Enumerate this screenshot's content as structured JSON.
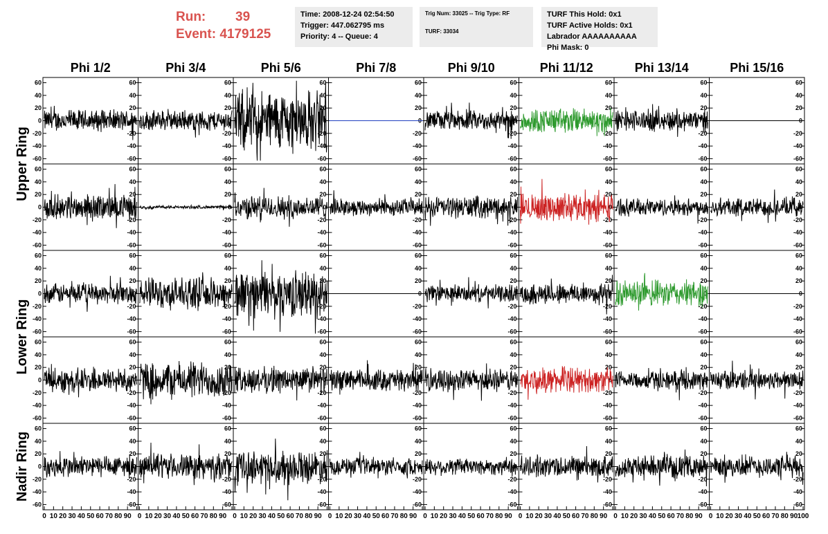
{
  "header": {
    "run_label": "Run:",
    "run_value": "39",
    "event_label": "Event:",
    "event_value": "4179125"
  },
  "info_box_1": {
    "time": "Time: 2008-12-24 02:54:50",
    "trigger": "Trigger: 447.062795 ms",
    "priority": "Priority: 4 -- Queue: 4"
  },
  "info_box_2": {
    "trig": "Trig Num: 33025 -- Trig Type: RF",
    "turf": "TURF: 33034"
  },
  "info_box_3": {
    "hold": "TURF This Hold: 0x1",
    "active": "TURF Active Holds: 0x1",
    "labrador": "Labrador AAAAAAAAAA",
    "phimask": "Phi Mask: 0"
  },
  "chart_data": {
    "type": "line",
    "title": "",
    "column_labels": [
      "Phi 1/2",
      "Phi 3/4",
      "Phi 5/6",
      "Phi 7/8",
      "Phi 9/10",
      "Phi 11/12",
      "Phi 13/14",
      "Phi 15/16"
    ],
    "ring_labels": [
      "Upper Ring",
      "Lower Ring",
      "Nadir Ring"
    ],
    "ylim": [
      -65,
      65
    ],
    "yticks": [
      -60,
      -40,
      -20,
      0,
      20,
      40,
      60
    ],
    "xlim": [
      0,
      100
    ],
    "xticks": [
      0,
      10,
      20,
      30,
      40,
      50,
      60,
      70,
      80,
      90,
      100
    ],
    "colors": {
      "black": "#000000",
      "green": "#2e9a2e",
      "red": "#cc2222",
      "blue": "#1f3fbf"
    },
    "rows": [
      {
        "ring": "Upper Ring",
        "cells": [
          {
            "amp": 14,
            "color": "black"
          },
          {
            "amp": 13,
            "color": "black"
          },
          {
            "amp": 40,
            "color": "black"
          },
          {
            "amp": 0,
            "color": "blue"
          },
          {
            "amp": 13,
            "color": "black"
          },
          {
            "amp": 16,
            "color": "green"
          },
          {
            "amp": 14,
            "color": "black"
          },
          {
            "amp": 0,
            "color": "black"
          }
        ]
      },
      {
        "ring": "Upper Ring",
        "cells": [
          {
            "amp": 16,
            "color": "black"
          },
          {
            "amp": 2,
            "color": "black"
          },
          {
            "amp": 15,
            "color": "black"
          },
          {
            "amp": 11,
            "color": "black"
          },
          {
            "amp": 14,
            "color": "black"
          },
          {
            "amp": 18,
            "color": "red"
          },
          {
            "amp": 11,
            "color": "black"
          },
          {
            "amp": 12,
            "color": "black"
          }
        ]
      },
      {
        "ring": "Lower Ring",
        "cells": [
          {
            "amp": 13,
            "color": "black"
          },
          {
            "amp": 20,
            "color": "black"
          },
          {
            "amp": 30,
            "color": "black"
          },
          {
            "amp": 0,
            "color": "black"
          },
          {
            "amp": 11,
            "color": "black"
          },
          {
            "amp": 14,
            "color": "black"
          },
          {
            "amp": 17,
            "color": "green"
          },
          {
            "amp": 0,
            "color": "black"
          }
        ]
      },
      {
        "ring": "Lower Ring",
        "cells": [
          {
            "amp": 16,
            "color": "black"
          },
          {
            "amp": 24,
            "color": "black"
          },
          {
            "amp": 17,
            "color": "black"
          },
          {
            "amp": 14,
            "color": "black"
          },
          {
            "amp": 14,
            "color": "black"
          },
          {
            "amp": 16,
            "color": "red"
          },
          {
            "amp": 12,
            "color": "black"
          },
          {
            "amp": 13,
            "color": "black"
          }
        ]
      },
      {
        "ring": "Nadir Ring",
        "cells": [
          {
            "amp": 14,
            "color": "black"
          },
          {
            "amp": 16,
            "color": "black"
          },
          {
            "amp": 21,
            "color": "black"
          },
          {
            "amp": 11,
            "color": "black"
          },
          {
            "amp": 11,
            "color": "black"
          },
          {
            "amp": 14,
            "color": "black"
          },
          {
            "amp": 14,
            "color": "black"
          },
          {
            "amp": 14,
            "color": "black"
          }
        ]
      }
    ]
  }
}
